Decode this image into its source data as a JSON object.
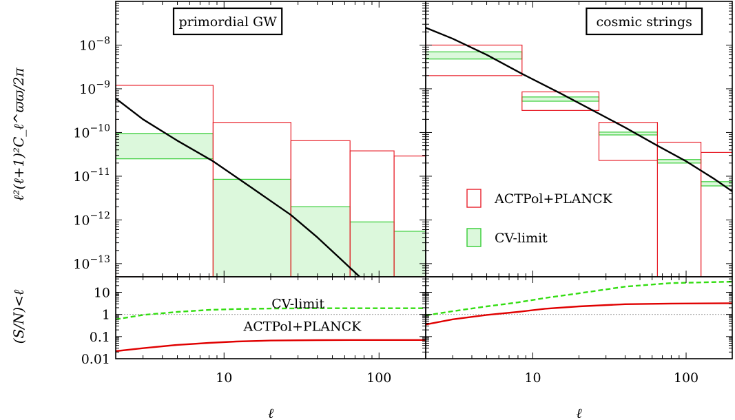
{
  "colors": {
    "measurement_edge": "#e8202a",
    "cv_edge": "#33cc33",
    "cv_fill": "#dcf8dc",
    "theory": "#000000",
    "sn_measurement": "#e00000",
    "sn_cv": "#33dd11",
    "reference_line": "#b0b0b0"
  },
  "chart_data": {
    "type": "multi-panel log-log band-power plot",
    "y_label": "ℓ²(ℓ+1)²C_ℓ^ϖϖ/2π",
    "x_label": "ℓ",
    "sn_ylabel": "(S/N)<ℓ",
    "x_scale": "log",
    "x_range": [
      2,
      200
    ],
    "x_ticks": [
      {
        "value": 10,
        "label": "10"
      },
      {
        "value": 100,
        "label": "100"
      }
    ],
    "y_scale": "log",
    "y_range": [
      5e-14,
      1e-07
    ],
    "y_ticks": [
      {
        "value": 1e-08,
        "label": "10^-8",
        "mantissa": "10",
        "exponent": "−8"
      },
      {
        "value": 1e-09,
        "label": "10^-9",
        "mantissa": "10",
        "exponent": "−9"
      },
      {
        "value": 1e-10,
        "label": "10^-10",
        "mantissa": "10",
        "exponent": "−10"
      },
      {
        "value": 1e-11,
        "label": "10^-11",
        "mantissa": "10",
        "exponent": "−11"
      },
      {
        "value": 1e-12,
        "label": "10^-12",
        "mantissa": "10",
        "exponent": "−12"
      },
      {
        "value": 1e-13,
        "label": "10^-13",
        "mantissa": "10",
        "exponent": "−13"
      }
    ],
    "sn_scale": "log",
    "sn_range": [
      0.01,
      50
    ],
    "sn_ticks": [
      {
        "value": 10,
        "label": "10"
      },
      {
        "value": 1,
        "label": "1"
      },
      {
        "value": 0.1,
        "label": "0.1"
      },
      {
        "value": 0.01,
        "label": "0.01"
      }
    ],
    "legend": {
      "position": "right panel, lower middle",
      "entries": [
        {
          "label": "ACTPol+PLANCK",
          "role": "measurement"
        },
        {
          "label": "CV-limit",
          "role": "cv"
        }
      ]
    },
    "panels": [
      {
        "title": "primordial GW",
        "measurement_bins": [
          {
            "l_min": 2,
            "l_max": 8.5,
            "upper": 1.2e-09,
            "lower": 0
          },
          {
            "l_min": 8.5,
            "l_max": 27,
            "upper": 1.7e-10,
            "lower": 0
          },
          {
            "l_min": 27,
            "l_max": 65,
            "upper": 6.5e-11,
            "lower": 0
          },
          {
            "l_min": 65,
            "l_max": 125,
            "upper": 3.8e-11,
            "lower": 0
          },
          {
            "l_min": 125,
            "l_max": 200,
            "upper": 2.9e-11,
            "lower": 0
          }
        ],
        "cv_bins": [
          {
            "l_min": 2,
            "l_max": 8.5,
            "upper": 9.5e-11,
            "lower": 2.5e-11
          },
          {
            "l_min": 8.5,
            "l_max": 27,
            "upper": 8.5e-12,
            "lower": 0
          },
          {
            "l_min": 27,
            "l_max": 65,
            "upper": 2e-12,
            "lower": 0
          },
          {
            "l_min": 65,
            "l_max": 125,
            "upper": 9e-13,
            "lower": 0
          },
          {
            "l_min": 125,
            "l_max": 200,
            "upper": 5.5e-13,
            "lower": 0
          }
        ],
        "theory_curve": {
          "l": [
            2,
            3,
            5,
            8.5,
            15,
            27,
            40,
            55,
            65,
            75
          ],
          "value": [
            6e-10,
            2e-10,
            6.5e-11,
            2.2e-11,
            5.5e-12,
            1.3e-12,
            4e-13,
            1.4e-13,
            8e-14,
            5e-14
          ]
        },
        "sn_measurement": {
          "l": [
            2,
            3,
            5,
            8,
            12,
            20,
            40,
            80,
            200
          ],
          "value": [
            0.022,
            0.03,
            0.042,
            0.052,
            0.06,
            0.066,
            0.069,
            0.07,
            0.07
          ]
        },
        "sn_cv": {
          "l": [
            2,
            3,
            5,
            8,
            12,
            20,
            40,
            80,
            200
          ],
          "value": [
            0.6,
            0.95,
            1.3,
            1.6,
            1.75,
            1.85,
            1.9,
            1.9,
            1.9
          ]
        },
        "sn_annotations": [
          {
            "text": "CV-limit",
            "l": 30,
            "sn": 3.2
          },
          {
            "text": "ACTPol+PLANCK",
            "l": 32,
            "sn": 0.3
          }
        ]
      },
      {
        "title": "cosmic strings",
        "measurement_bins": [
          {
            "l_min": 2,
            "l_max": 8.5,
            "upper": 1e-08,
            "lower": 2e-09
          },
          {
            "l_min": 8.5,
            "l_max": 27,
            "upper": 8.5e-10,
            "lower": 3.2e-10
          },
          {
            "l_min": 27,
            "l_max": 65,
            "upper": 1.7e-10,
            "lower": 2.3e-11
          },
          {
            "l_min": 65,
            "l_max": 125,
            "upper": 6e-11,
            "lower": 0
          },
          {
            "l_min": 125,
            "l_max": 200,
            "upper": 3.5e-11,
            "lower": 0
          }
        ],
        "cv_bins": [
          {
            "l_min": 2,
            "l_max": 8.5,
            "upper": 7e-09,
            "lower": 4.8e-09
          },
          {
            "l_min": 8.5,
            "l_max": 27,
            "upper": 6.5e-10,
            "lower": 5.2e-10
          },
          {
            "l_min": 27,
            "l_max": 65,
            "upper": 1.02e-10,
            "lower": 8.8e-11
          },
          {
            "l_min": 65,
            "l_max": 125,
            "upper": 2.4e-11,
            "lower": 2e-11
          },
          {
            "l_min": 125,
            "l_max": 200,
            "upper": 7.5e-12,
            "lower": 6e-12
          }
        ],
        "theory_curve": {
          "l": [
            2,
            3,
            5,
            8.5,
            15,
            27,
            40,
            65,
            100,
            150,
            200
          ],
          "value": [
            2.5e-08,
            1.4e-08,
            6e-09,
            2.2e-09,
            8e-10,
            2.7e-10,
            1.3e-10,
            5e-11,
            2.2e-11,
            9e-12,
            4.5e-12
          ]
        },
        "sn_measurement": {
          "l": [
            2,
            3,
            5,
            8,
            12,
            20,
            40,
            80,
            200
          ],
          "value": [
            0.35,
            0.6,
            0.95,
            1.3,
            1.8,
            2.3,
            2.9,
            3.1,
            3.2
          ]
        },
        "sn_cv": {
          "l": [
            2,
            3,
            5,
            8,
            12,
            20,
            40,
            80,
            200
          ],
          "value": [
            0.9,
            1.4,
            2.3,
            3.5,
            5.5,
            9,
            18,
            26,
            30
          ]
        },
        "sn_annotations": []
      }
    ]
  }
}
